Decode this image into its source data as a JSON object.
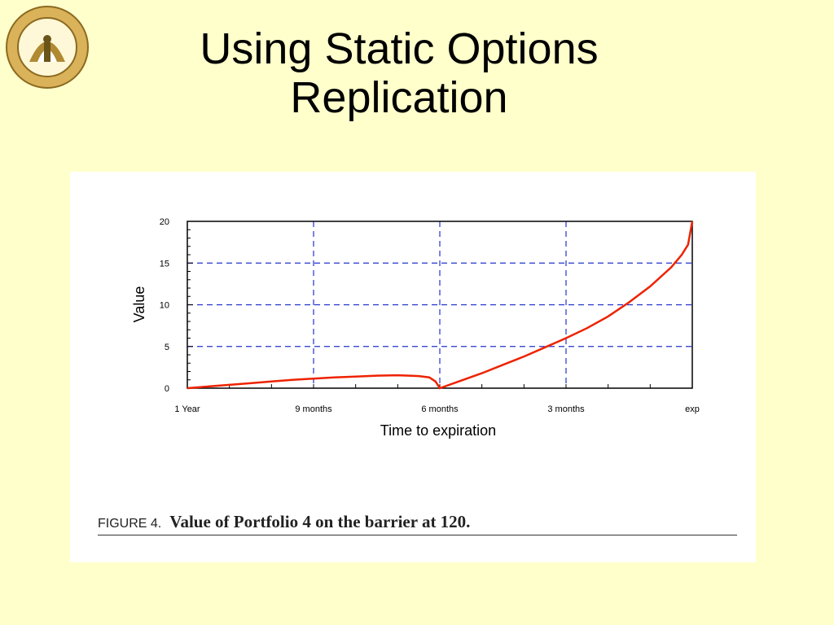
{
  "slide": {
    "title_line1": "Using Static Options",
    "title_line2": "Replication"
  },
  "logo": {
    "icon": "university-seal-icon",
    "colors": {
      "ring": "#c8a24a",
      "inner": "#8c6a1f",
      "center": "#ffffff"
    }
  },
  "figure": {
    "label": "FIGURE 4.",
    "caption": "Value of Portfolio 4 on the barrier at 120."
  },
  "chart_data": {
    "type": "line",
    "xlabel": "Time to expiration",
    "ylabel": "Value",
    "x_ticks": [
      "1 Year",
      "9 months",
      "6 months",
      "3 months",
      "exp"
    ],
    "xlim": [
      0,
      12
    ],
    "ylim": [
      0,
      20
    ],
    "y_ticks": [
      0,
      5,
      10,
      15,
      20
    ],
    "grid": true,
    "series": [
      {
        "color": "#ee2200",
        "x": [
          0,
          0.5,
          1,
          1.5,
          2,
          2.5,
          3,
          3.5,
          4,
          4.5,
          5,
          5.5,
          5.75,
          5.9,
          6,
          6.5,
          7,
          7.5,
          8,
          8.5,
          9,
          9.5,
          10,
          10.5,
          11,
          11.5,
          11.75,
          11.9,
          12
        ],
        "y": [
          0,
          0.2,
          0.4,
          0.6,
          0.8,
          1.0,
          1.15,
          1.3,
          1.4,
          1.5,
          1.55,
          1.45,
          1.3,
          0.8,
          0,
          0.9,
          1.8,
          2.8,
          3.8,
          4.9,
          6.0,
          7.2,
          8.6,
          10.3,
          12.2,
          14.5,
          16.0,
          17.2,
          20
        ]
      }
    ]
  }
}
